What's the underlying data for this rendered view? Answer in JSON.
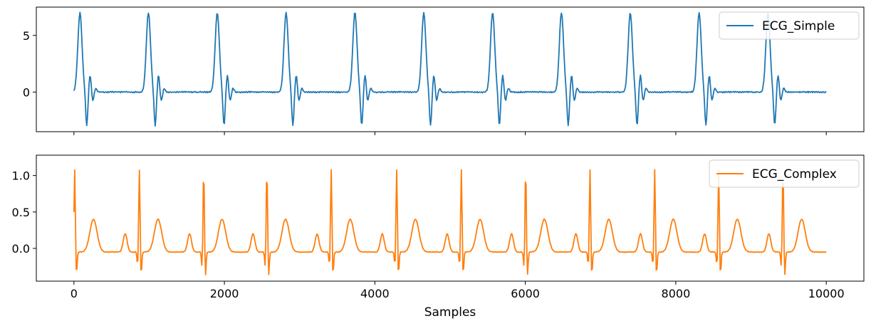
{
  "chart_data": [
    {
      "type": "line",
      "name": "top-panel",
      "xlim": [
        -500,
        10500
      ],
      "ylim": [
        -3.5,
        7.5
      ],
      "xticks": [
        0,
        2000,
        4000,
        6000,
        8000,
        10000
      ],
      "yticks": [
        0,
        5
      ],
      "ytick_labels": [
        "0",
        "5"
      ],
      "show_xtick_labels": false,
      "xlabel": "",
      "legend": {
        "placement": "top-right",
        "entries": [
          "ECG_Simple"
        ]
      },
      "series": [
        {
          "name": "ECG_Simple",
          "color": "#1f77b4",
          "num_samples": 10000,
          "start": 0,
          "end": 10000,
          "r_peaks": [
            80,
            990,
            1905,
            2820,
            3735,
            4650,
            5565,
            6480,
            7395,
            8310,
            9225
          ],
          "r_amplitude": 7.0,
          "s_amplitude": -3.0,
          "secondary_amplitude": 1.5,
          "baseline": 0.0
        }
      ]
    },
    {
      "type": "line",
      "name": "bottom-panel",
      "xlim": [
        -500,
        10500
      ],
      "ylim": [
        -0.45,
        1.28
      ],
      "xticks": [
        0,
        2000,
        4000,
        6000,
        8000,
        10000
      ],
      "xtick_labels": [
        "0",
        "2000",
        "4000",
        "6000",
        "8000",
        "10000"
      ],
      "yticks": [
        0.0,
        0.5,
        1.0
      ],
      "ytick_labels": [
        "0.0",
        "0.5",
        "1.0"
      ],
      "show_xtick_labels": true,
      "xlabel": "Samples",
      "legend": {
        "placement": "top-right",
        "entries": [
          "ECG_Complex"
        ]
      },
      "series": [
        {
          "name": "ECG_Complex",
          "color": "#ff7f0e",
          "num_samples": 10000,
          "start": 0,
          "end": 10000,
          "r_peaks": [
            10,
            870,
            1725,
            2565,
            3420,
            4290,
            5150,
            6005,
            6860,
            7720,
            8570,
            9425
          ],
          "r_amplitude": 1.15,
          "s_amplitude": -0.35,
          "t_amplitude": 0.45,
          "p_amplitude": 0.25,
          "baseline": -0.05
        }
      ]
    }
  ]
}
